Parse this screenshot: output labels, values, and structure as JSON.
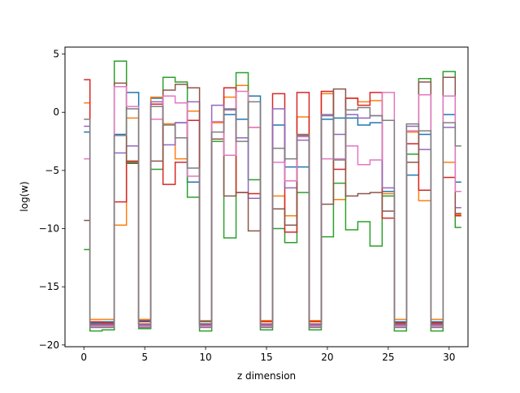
{
  "chart_data": {
    "type": "line",
    "title": "",
    "xlabel": "z dimension",
    "ylabel": "log(w)",
    "xlim": [
      -1.55,
      31.55
    ],
    "ylim": [
      -20.15,
      5.6
    ],
    "xticks": [
      0,
      5,
      10,
      15,
      20,
      25,
      30
    ],
    "xtick_labels": [
      "0",
      "5",
      "10",
      "15",
      "20",
      "25",
      "30"
    ],
    "yticks": [
      -20,
      -15,
      -10,
      -5,
      0,
      5
    ],
    "ytick_labels": [
      "−20",
      "−15",
      "−10",
      "−5",
      "0",
      "5"
    ],
    "grid": false,
    "legend": "none",
    "step": "mid",
    "x": [
      0,
      1,
      2,
      3,
      4,
      5,
      6,
      7,
      8,
      9,
      10,
      11,
      12,
      13,
      14,
      15,
      16,
      17,
      18,
      19,
      20,
      21,
      22,
      23,
      24,
      25,
      26,
      27,
      28,
      29,
      30,
      31
    ],
    "series": [
      {
        "color": "#1f77b4",
        "values": [
          -1.7,
          -18.1,
          -18.0,
          -1.9,
          1.7,
          -17.9,
          1.2,
          -1.0,
          -0.9,
          -6.0,
          -18.0,
          -0.8,
          -0.2,
          -0.6,
          1.4,
          -18.0,
          -1.1,
          -4.7,
          -4.7,
          -18.0,
          -0.6,
          -0.5,
          -0.5,
          -1.1,
          -0.9,
          -6.8,
          -18.0,
          -5.4,
          -1.9,
          -18.0,
          -0.2,
          -6.0
        ]
      },
      {
        "color": "#ff7f0e",
        "values": [
          0.8,
          -17.8,
          -17.8,
          -9.7,
          -0.5,
          -17.8,
          1.3,
          -1.0,
          -4.0,
          0.1,
          -17.9,
          -0.9,
          1.3,
          2.3,
          -1.3,
          -17.9,
          -7.2,
          -8.9,
          -0.4,
          -17.9,
          1.6,
          -7.5,
          1.2,
          0.9,
          1.0,
          -7.0,
          -17.8,
          -1.7,
          -7.6,
          -17.8,
          -4.3,
          -8.8
        ]
      },
      {
        "color": "#2ca02c",
        "values": [
          -11.8,
          -18.8,
          -18.7,
          4.4,
          -4.3,
          -18.6,
          -4.9,
          3.0,
          2.6,
          -7.3,
          -18.8,
          -2.5,
          -10.8,
          3.4,
          -5.8,
          -18.7,
          -10.0,
          -11.2,
          -6.9,
          -18.7,
          -10.7,
          -6.1,
          -10.1,
          -9.4,
          -11.5,
          -7.2,
          -18.8,
          -3.6,
          2.9,
          -18.8,
          3.5,
          -9.9
        ]
      },
      {
        "color": "#d62728",
        "values": [
          2.8,
          -18.0,
          -18.1,
          -7.7,
          -4.2,
          -18.0,
          0.7,
          -6.2,
          -4.3,
          -0.7,
          -18.2,
          -2.3,
          2.1,
          -6.9,
          -7.0,
          -18.0,
          1.6,
          -10.3,
          1.7,
          -18.0,
          1.8,
          -4.9,
          1.2,
          0.6,
          1.7,
          -9.1,
          -18.1,
          -2.7,
          -6.7,
          -18.1,
          -5.6,
          -8.9
        ]
      },
      {
        "color": "#9467bd",
        "values": [
          -1.2,
          -18.3,
          -18.3,
          -3.5,
          -2.9,
          -18.3,
          0.9,
          -2.8,
          -0.9,
          0.9,
          -18.3,
          0.6,
          0.2,
          -2.2,
          -7.4,
          -18.3,
          0.3,
          -6.5,
          -2.4,
          -18.3,
          -0.2,
          -1.9,
          -0.2,
          -0.5,
          -0.3,
          -6.5,
          -18.3,
          -1.2,
          -3.2,
          -18.3,
          -1.3,
          -8.2
        ]
      },
      {
        "color": "#8c564b",
        "values": [
          -9.3,
          -18.2,
          -18.2,
          2.5,
          -4.4,
          -18.2,
          -4.2,
          1.9,
          2.4,
          2.1,
          -18.2,
          -2.3,
          -7.2,
          -6.9,
          -10.2,
          -18.2,
          -8.3,
          -9.7,
          -2.0,
          -18.2,
          -7.9,
          2.0,
          -7.2,
          -7.0,
          -6.9,
          -8.5,
          -18.2,
          -4.3,
          2.6,
          -18.2,
          3.0,
          -8.7
        ]
      },
      {
        "color": "#e377c2",
        "values": [
          -4.0,
          -18.4,
          -18.4,
          2.2,
          0.5,
          -18.4,
          -0.6,
          1.4,
          0.8,
          -5.5,
          -18.4,
          -0.8,
          -3.7,
          1.8,
          -1.3,
          -18.4,
          -4.3,
          -5.9,
          -2.1,
          -18.4,
          -4.0,
          -4.0,
          -2.9,
          -4.5,
          -4.1,
          1.7,
          -18.4,
          -1.6,
          1.5,
          -18.4,
          1.4,
          -6.8
        ]
      },
      {
        "color": "#7f7f7f",
        "values": [
          -0.6,
          -18.5,
          -18.5,
          -2.0,
          0.3,
          -18.5,
          0.5,
          -1.1,
          -2.2,
          -4.8,
          -18.5,
          -1.7,
          0.3,
          -2.5,
          0.9,
          -18.5,
          -3.1,
          -4.0,
          -1.9,
          -18.5,
          -0.3,
          -4.1,
          0.2,
          0.4,
          -0.3,
          -0.7,
          -18.5,
          -1.0,
          -1.6,
          -18.5,
          -0.9,
          -2.9
        ]
      }
    ]
  }
}
